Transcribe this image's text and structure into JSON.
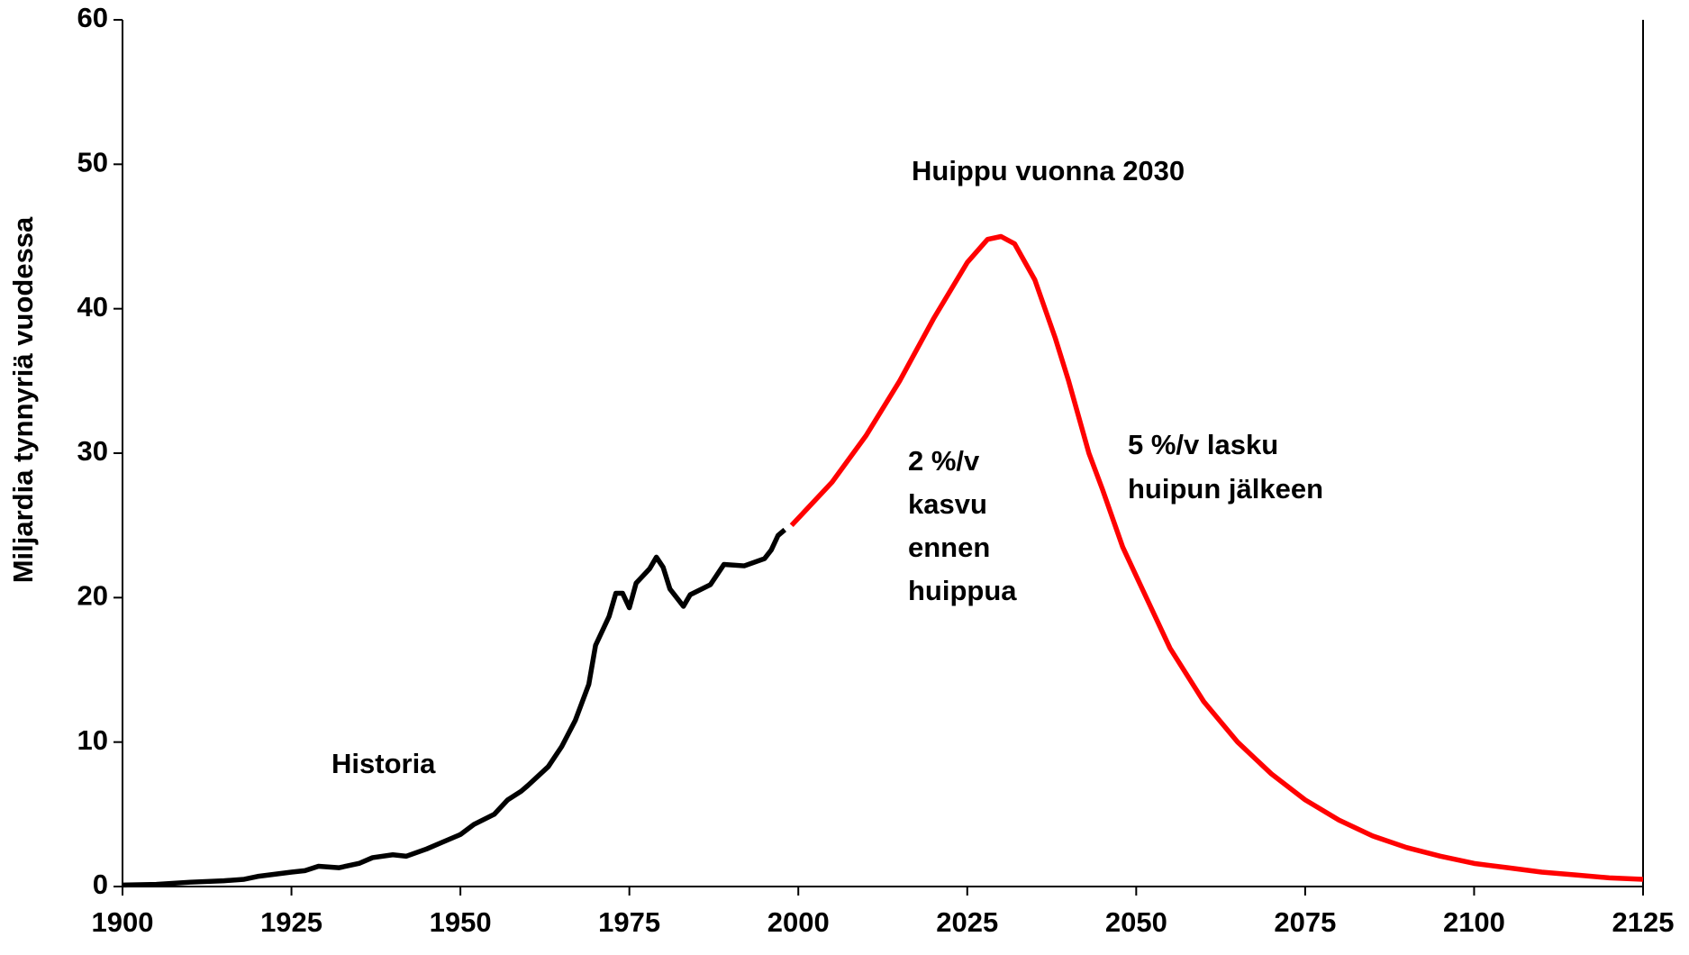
{
  "chart_data": {
    "type": "line",
    "y_label": "Miljardia tynnyriä vuodessa",
    "xlim": [
      1900,
      2125
    ],
    "xticks": [
      1900,
      1925,
      1950,
      1975,
      2000,
      2025,
      2050,
      2075,
      2100,
      2125
    ],
    "ylim": [
      0,
      60
    ],
    "yticks": [
      0,
      10,
      20,
      30,
      40,
      50,
      60
    ],
    "grid": false,
    "series": [
      {
        "color": "#000000",
        "x": [
          1900,
          1905,
          1910,
          1915,
          1918,
          1920,
          1925,
          1927,
          1929,
          1932,
          1935,
          1937,
          1940,
          1942,
          1945,
          1947,
          1950,
          1952,
          1955,
          1957,
          1959,
          1960,
          1963,
          1965,
          1967,
          1969,
          1970,
          1972,
          1973,
          1974,
          1975,
          1976,
          1978,
          1979,
          1980,
          1981,
          1983,
          1984,
          1987,
          1989,
          1992,
          1995,
          1996,
          1997,
          1998
        ],
        "values": [
          0.1,
          0.15,
          0.3,
          0.4,
          0.5,
          0.7,
          1.0,
          1.1,
          1.4,
          1.3,
          1.6,
          2.0,
          2.2,
          2.1,
          2.6,
          3.0,
          3.6,
          4.3,
          5.0,
          6.0,
          6.6,
          7.0,
          8.3,
          9.7,
          11.5,
          14.0,
          16.7,
          18.7,
          20.3,
          20.3,
          19.3,
          21.0,
          22.0,
          22.8,
          22.1,
          20.6,
          19.4,
          20.2,
          20.9,
          22.3,
          22.2,
          22.7,
          23.3,
          24.3,
          24.7
        ]
      },
      {
        "color": "#ff0000",
        "x": [
          1999,
          2005,
          2010,
          2015,
          2020,
          2025,
          2028,
          2030,
          2032,
          2035,
          2038,
          2040,
          2043,
          2045,
          2048,
          2050,
          2055,
          2060,
          2065,
          2070,
          2075,
          2080,
          2085,
          2090,
          2095,
          2100,
          2105,
          2110,
          2115,
          2120,
          2125
        ],
        "values": [
          25.0,
          28.0,
          31.2,
          35.0,
          39.3,
          43.2,
          44.8,
          45.0,
          44.5,
          42.0,
          38.0,
          35.0,
          30.0,
          27.5,
          23.5,
          21.5,
          16.5,
          12.8,
          10.0,
          7.8,
          6.0,
          4.6,
          3.5,
          2.7,
          2.1,
          1.6,
          1.3,
          1.0,
          0.8,
          0.6,
          0.5
        ]
      }
    ],
    "annotations": [
      {
        "lines": [
          "Huippu vuonna 2030"
        ]
      },
      {
        "lines": [
          "2 %/v",
          "kasvu",
          "ennen",
          "huippua"
        ]
      },
      {
        "lines": [
          "5 %/v lasku",
          "huipun jälkeen"
        ]
      },
      {
        "lines": [
          "Historia"
        ]
      }
    ]
  }
}
